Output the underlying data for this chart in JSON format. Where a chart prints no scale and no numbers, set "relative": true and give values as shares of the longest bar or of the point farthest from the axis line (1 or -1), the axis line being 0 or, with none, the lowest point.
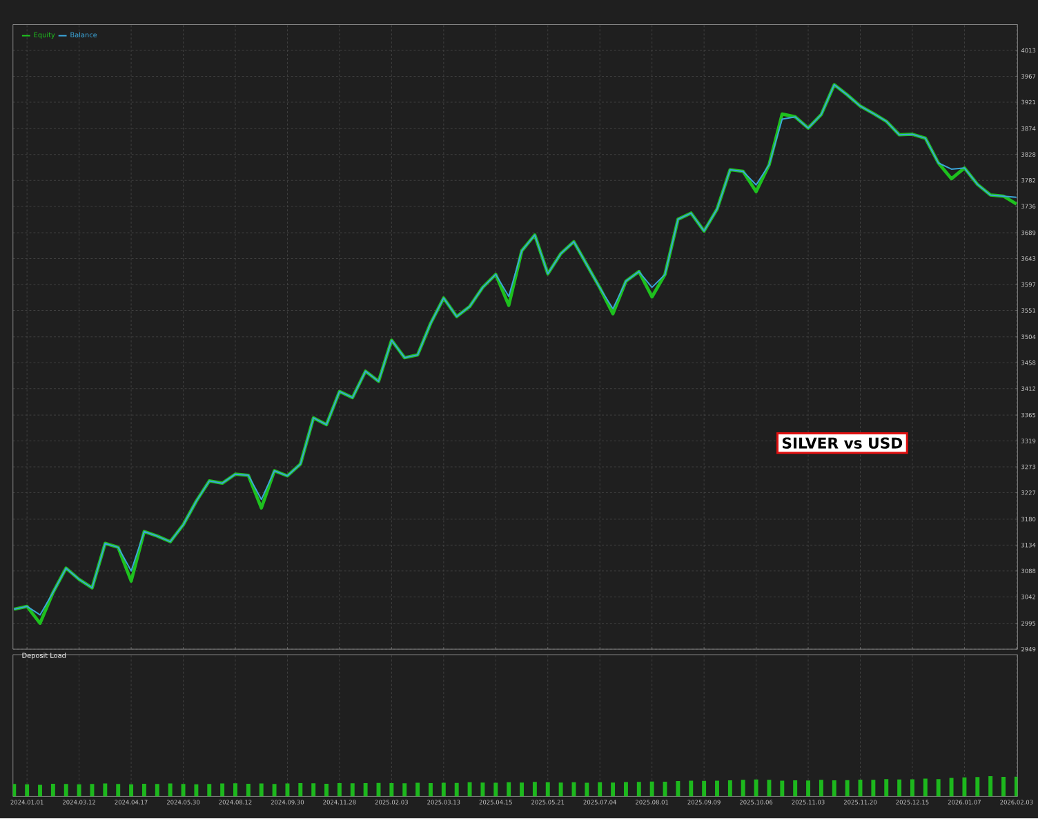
{
  "chart_data": [
    {
      "type": "line",
      "ylim": [
        2949,
        4059
      ],
      "grid": true,
      "legend": "top left",
      "tick_labels": "y",
      "categories": [
        null,
        "2024.01.01",
        null,
        null,
        null,
        "2024.03.12",
        null,
        null,
        null,
        "2024.04.17",
        null,
        null,
        null,
        "2024.05.30",
        null,
        null,
        null,
        "2024.08.12",
        null,
        null,
        null,
        "2024.09.30",
        null,
        null,
        null,
        "2024.11.28",
        null,
        null,
        null,
        "2025.02.03",
        null,
        null,
        null,
        "2025.03.13",
        null,
        null,
        null,
        "2025.04.15",
        null,
        null,
        null,
        "2025.05.21",
        null,
        null,
        null,
        "2025.07.04",
        null,
        null,
        null,
        "2025.08.01",
        null,
        null,
        null,
        "2025.09.09",
        null,
        null,
        null,
        "2025.10.06",
        null,
        null,
        null,
        "2025.11.03",
        null,
        null,
        null,
        "2025.11.20",
        null,
        null,
        null,
        "2025.12.15",
        null,
        null,
        null,
        "2026.01.07",
        null,
        null,
        null,
        "2026.02.03"
      ],
      "yticks": [
        2949,
        2995,
        3042,
        3088,
        3134,
        3180,
        3227,
        3273,
        3319,
        3365,
        3412,
        3458,
        3504,
        3551,
        3597,
        3643,
        3689,
        3736,
        3782,
        3828,
        3874,
        3921,
        3967,
        4013
      ],
      "series": [
        {
          "name": "Equity",
          "color": "#1ec01e",
          "values": [
            3020,
            3025,
            2995,
            3050,
            3093,
            3073,
            3058,
            3137,
            3130,
            3070,
            3158,
            3150,
            3140,
            3170,
            3212,
            3248,
            3244,
            3260,
            3258,
            3200,
            3266,
            3257,
            3278,
            3360,
            3348,
            3407,
            3396,
            3443,
            3425,
            3498,
            3467,
            3472,
            3528,
            3573,
            3540,
            3558,
            3592,
            3615,
            3560,
            3657,
            3685,
            3616,
            3652,
            3673,
            3632,
            3591,
            3545,
            3603,
            3620,
            3575,
            3615,
            3713,
            3724,
            3692,
            3731,
            3801,
            3798,
            3762,
            3810,
            3900,
            3895,
            3875,
            3899,
            3952,
            3934,
            3914,
            3901,
            3887,
            3863,
            3864,
            3857,
            3813,
            3785,
            3804,
            3775,
            3756,
            3754,
            3740
          ]
        },
        {
          "name": "Balance",
          "color": "#3ba4d8",
          "values": [
            3020,
            3025,
            3010,
            3050,
            3093,
            3073,
            3058,
            3137,
            3130,
            3088,
            3158,
            3150,
            3140,
            3170,
            3212,
            3248,
            3244,
            3260,
            3258,
            3215,
            3266,
            3257,
            3278,
            3360,
            3348,
            3407,
            3396,
            3443,
            3425,
            3498,
            3467,
            3472,
            3528,
            3573,
            3540,
            3558,
            3592,
            3615,
            3576,
            3657,
            3685,
            3616,
            3652,
            3673,
            3632,
            3591,
            3554,
            3603,
            3620,
            3592,
            3615,
            3713,
            3724,
            3692,
            3731,
            3801,
            3798,
            3774,
            3810,
            3891,
            3895,
            3875,
            3899,
            3952,
            3934,
            3914,
            3901,
            3887,
            3863,
            3864,
            3857,
            3813,
            3802,
            3804,
            3775,
            3756,
            3754,
            3752
          ]
        }
      ],
      "annotations": [
        "SILVER vs USD"
      ]
    },
    {
      "type": "bar",
      "title": "Deposit Load",
      "relative": true,
      "color": "#1db81d",
      "grid": "x",
      "categories": [
        null,
        "2024.01.01",
        null,
        null,
        null,
        "2024.03.12",
        null,
        null,
        null,
        "2024.04.17",
        null,
        null,
        null,
        "2024.05.30",
        null,
        null,
        null,
        "2024.08.12",
        null,
        null,
        null,
        "2024.09.30",
        null,
        null,
        null,
        "2024.11.28",
        null,
        null,
        null,
        "2025.02.03",
        null,
        null,
        null,
        "2025.03.13",
        null,
        null,
        null,
        "2025.04.15",
        null,
        null,
        null,
        "2025.05.21",
        null,
        null,
        null,
        "2025.07.04",
        null,
        null,
        null,
        "2025.08.01",
        null,
        null,
        null,
        "2025.09.09",
        null,
        null,
        null,
        "2025.10.06",
        null,
        null,
        null,
        "2025.11.03",
        null,
        null,
        null,
        "2025.11.20",
        null,
        null,
        null,
        "2025.12.15",
        null,
        null,
        null,
        "2026.01.07",
        null,
        null,
        null,
        "2026.02.03"
      ],
      "values": [
        0.62,
        0.6,
        0.58,
        0.63,
        0.62,
        0.6,
        0.62,
        0.64,
        0.62,
        0.6,
        0.63,
        0.62,
        0.64,
        0.62,
        0.6,
        0.62,
        0.64,
        0.65,
        0.63,
        0.64,
        0.62,
        0.64,
        0.66,
        0.65,
        0.63,
        0.66,
        0.65,
        0.66,
        0.67,
        0.66,
        0.65,
        0.68,
        0.66,
        0.68,
        0.67,
        0.7,
        0.69,
        0.68,
        0.7,
        0.69,
        0.72,
        0.7,
        0.69,
        0.7,
        0.68,
        0.7,
        0.69,
        0.71,
        0.72,
        0.74,
        0.73,
        0.76,
        0.78,
        0.77,
        0.78,
        0.8,
        0.82,
        0.84,
        0.82,
        0.78,
        0.8,
        0.79,
        0.82,
        0.8,
        0.81,
        0.83,
        0.82,
        0.86,
        0.84,
        0.85,
        0.88,
        0.86,
        0.92,
        0.94,
        0.96,
        1.0,
        0.97,
        0.98
      ]
    }
  ]
}
